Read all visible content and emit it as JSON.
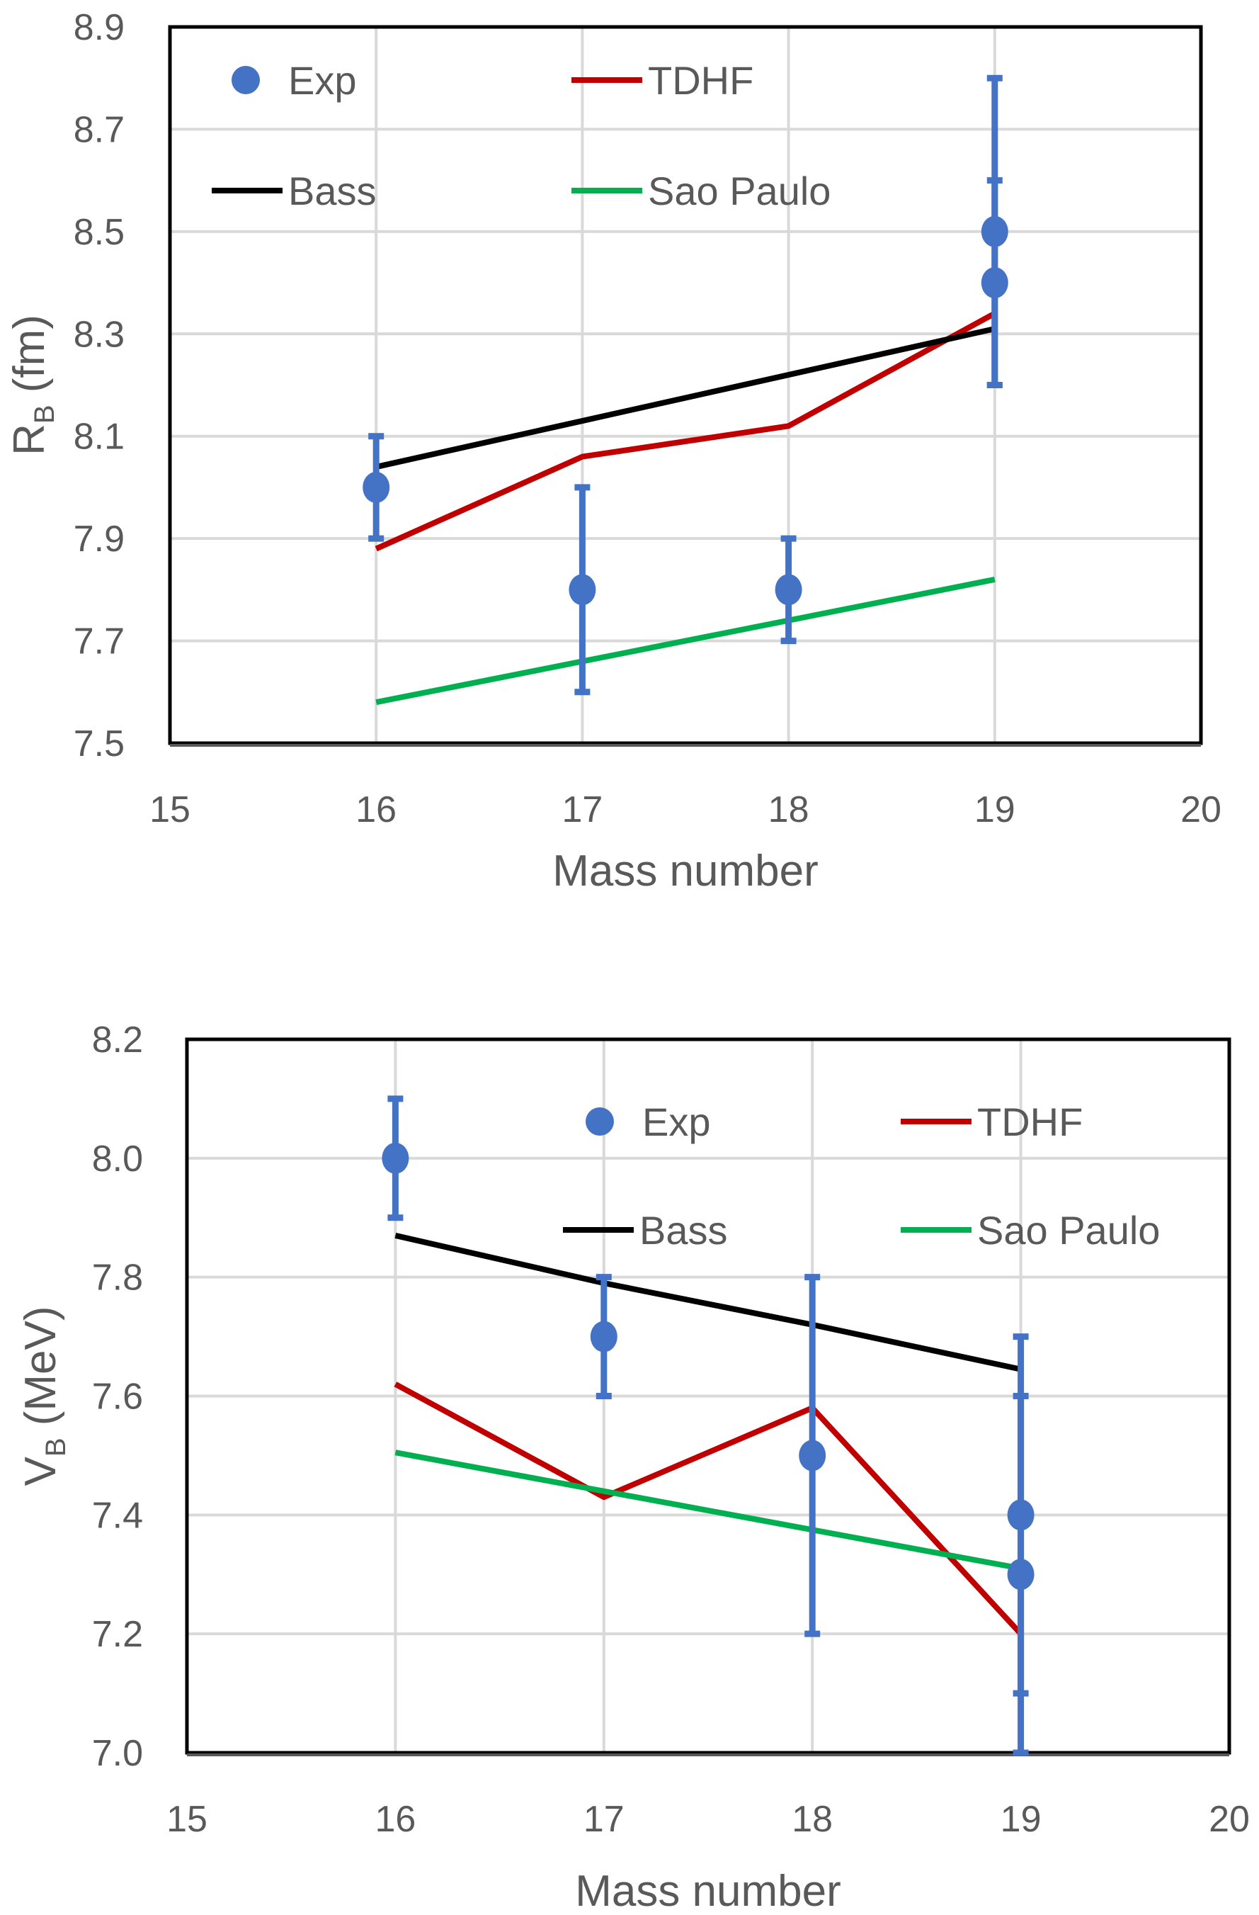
{
  "chart_data": [
    {
      "type": "line",
      "xlabel": "Mass number",
      "ylabel": {
        "symbol": "R",
        "subscript": "B",
        "unit": " (fm)"
      },
      "xlim": [
        15,
        20
      ],
      "ylim": [
        7.5,
        8.9
      ],
      "xticks": [
        "15",
        "16",
        "17",
        "18",
        "19",
        "20"
      ],
      "yticks": [
        "7.5",
        "7.7",
        "7.9",
        "8.1",
        "8.3",
        "8.5",
        "8.7",
        "8.9"
      ],
      "grid": true,
      "legend_placement": "inside-top",
      "series": [
        {
          "name": "Exp",
          "kind": "scatter-errorbar",
          "color": "#4472c4",
          "points": [
            {
              "x": 16,
              "y": 8.0,
              "err": 0.1
            },
            {
              "x": 17,
              "y": 7.8,
              "err": 0.2
            },
            {
              "x": 18,
              "y": 7.8,
              "err": 0.1
            },
            {
              "x": 19,
              "y": 8.5,
              "err": 0.3
            },
            {
              "x": 19,
              "y": 8.4,
              "err": 0.2
            }
          ]
        },
        {
          "name": "TDHF",
          "kind": "line",
          "color": "#c00000",
          "x": [
            16,
            17,
            18,
            19
          ],
          "y": [
            7.88,
            8.06,
            8.12,
            8.34
          ]
        },
        {
          "name": "Bass",
          "kind": "line",
          "color": "#000000",
          "x": [
            16,
            17,
            18,
            19
          ],
          "y": [
            8.04,
            8.13,
            8.22,
            8.31
          ]
        },
        {
          "name": "Sao Paulo",
          "kind": "line",
          "color": "#00b050",
          "x": [
            16,
            17,
            18,
            19
          ],
          "y": [
            7.58,
            7.66,
            7.74,
            7.82
          ]
        }
      ]
    },
    {
      "type": "line",
      "xlabel": "Mass number",
      "ylabel": {
        "symbol": "V",
        "subscript": "B",
        "unit": " (MeV)"
      },
      "xlim": [
        15,
        20
      ],
      "ylim": [
        7.0,
        8.2
      ],
      "xticks": [
        "15",
        "16",
        "17",
        "18",
        "19",
        "20"
      ],
      "yticks": [
        "7.0",
        "7.2",
        "7.4",
        "7.6",
        "7.8",
        "8.0",
        "8.2"
      ],
      "grid": true,
      "legend_placement": "inside-top",
      "series": [
        {
          "name": "Exp",
          "kind": "scatter-errorbar",
          "color": "#4472c4",
          "points": [
            {
              "x": 16,
              "y": 8.0,
              "err": 0.1
            },
            {
              "x": 17,
              "y": 7.7,
              "err": 0.1
            },
            {
              "x": 18,
              "y": 7.5,
              "err": 0.3
            },
            {
              "x": 19,
              "y": 7.4,
              "err": 0.3
            },
            {
              "x": 19,
              "y": 7.3,
              "err": 0.3
            }
          ]
        },
        {
          "name": "TDHF",
          "kind": "line",
          "color": "#c00000",
          "x": [
            16,
            17,
            18,
            19
          ],
          "y": [
            7.62,
            7.43,
            7.58,
            7.2
          ]
        },
        {
          "name": "Bass",
          "kind": "line",
          "color": "#000000",
          "x": [
            16,
            17,
            18,
            19
          ],
          "y": [
            7.87,
            7.79,
            7.72,
            7.645
          ]
        },
        {
          "name": "Sao Paulo",
          "kind": "line",
          "color": "#00b050",
          "x": [
            16,
            17,
            18,
            19
          ],
          "y": [
            7.505,
            7.44,
            7.375,
            7.31
          ]
        }
      ]
    }
  ]
}
